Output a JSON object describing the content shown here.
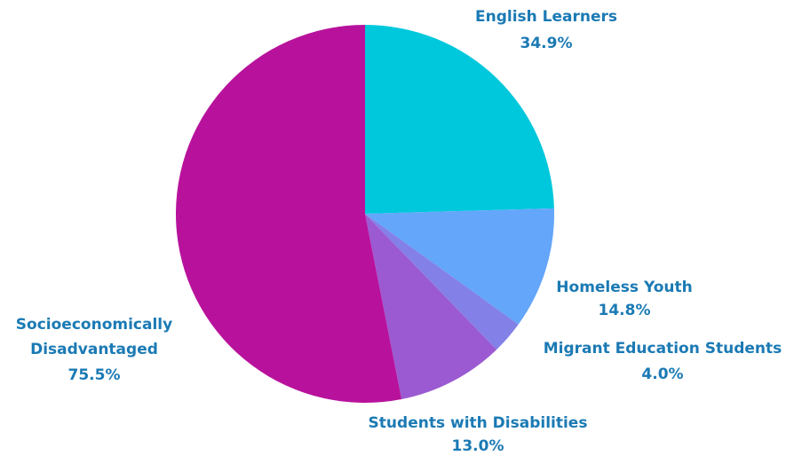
{
  "chart_data": {
    "type": "pie",
    "start_angle_deg": 0,
    "direction": "clockwise",
    "label_color": "#1b7ab4",
    "slices": [
      {
        "label": "English Learners",
        "value": 34.9,
        "display": "34.9%",
        "color": "#00c8dc"
      },
      {
        "label": "Homeless Youth",
        "value": 14.8,
        "display": "14.8%",
        "color": "#63a6fa"
      },
      {
        "label": "Migrant Education Students",
        "value": 4.0,
        "display": "4.0%",
        "color": "#8380e8"
      },
      {
        "label": "Students with Disabilities",
        "value": 13.0,
        "display": "13.0%",
        "color": "#9b5ad2"
      },
      {
        "label": "Socioeconomically Disadvantaged",
        "value": 75.5,
        "display": "75.5%",
        "color": "#b8129c"
      }
    ]
  }
}
